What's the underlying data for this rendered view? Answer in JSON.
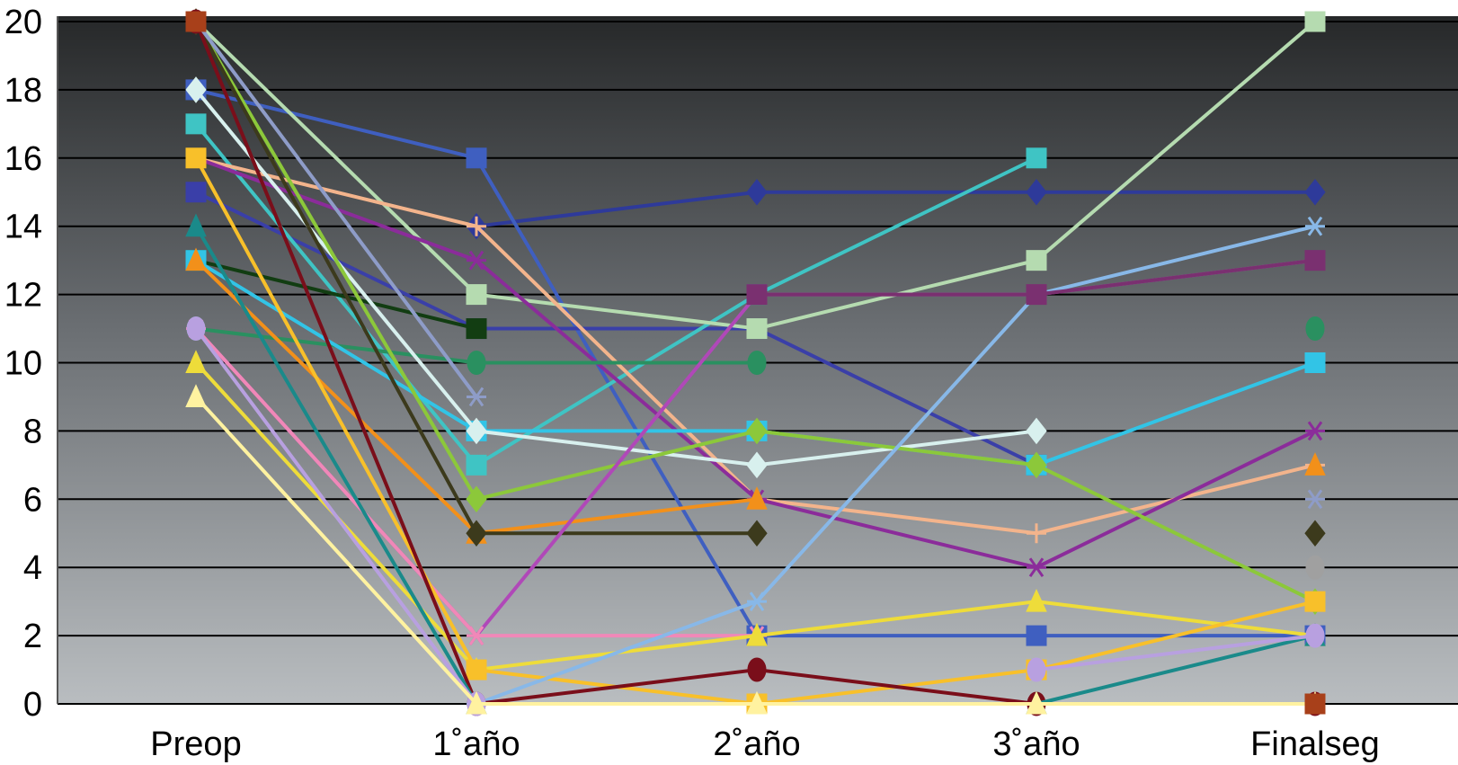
{
  "chart_data": {
    "type": "line",
    "title": "",
    "xlabel": "",
    "ylabel": "",
    "categories": [
      "Preop",
      "1˚año",
      "2˚año",
      "3˚año",
      "Finalseg"
    ],
    "y_ticks": [
      "0",
      "2",
      "4",
      "6",
      "8",
      "10",
      "12",
      "14",
      "16",
      "18",
      "20"
    ],
    "ylim": [
      0,
      20
    ],
    "grid": true,
    "legend": "none",
    "background": "dark-to-light vertical gradient",
    "series": [
      {
        "color": "#2e3a9a",
        "marker": "diamond",
        "values": [
          null,
          14,
          15,
          15,
          15
        ]
      },
      {
        "color": "#3f5fc0",
        "marker": "square",
        "values": [
          18,
          16,
          2,
          2,
          2
        ]
      },
      {
        "color": "#3a3fa8",
        "marker": "square",
        "values": [
          15,
          11,
          11,
          7,
          null
        ]
      },
      {
        "color": "#3fc4c4",
        "marker": "square",
        "values": [
          17,
          7,
          12,
          16,
          null
        ]
      },
      {
        "color": "#b5dbb0",
        "marker": "square",
        "values": [
          20,
          12,
          11,
          13,
          20
        ]
      },
      {
        "color": "#f3b48c",
        "marker": "plus",
        "values": [
          16,
          14,
          6,
          5,
          7
        ]
      },
      {
        "color": "#8b2c9a",
        "marker": "star",
        "values": [
          16,
          13,
          6,
          4,
          8
        ]
      },
      {
        "color": "#123d12",
        "marker": "square",
        "values": [
          13,
          11,
          null,
          null,
          null
        ]
      },
      {
        "color": "#2a9060",
        "marker": "circle",
        "values": [
          11,
          10,
          10,
          null,
          11
        ]
      },
      {
        "color": "#32c4e6",
        "marker": "square",
        "values": [
          13,
          8,
          8,
          7,
          10
        ]
      },
      {
        "color": "#d8f0ee",
        "marker": "diamond",
        "values": [
          18,
          8,
          7,
          8,
          null
        ]
      },
      {
        "color": "#f2901a",
        "marker": "triangle",
        "values": [
          13,
          5,
          6,
          null,
          7
        ]
      },
      {
        "color": "#8cc83a",
        "marker": "diamond",
        "values": [
          20,
          6,
          8,
          7,
          3
        ]
      },
      {
        "color": "#3c3a1c",
        "marker": "diamond",
        "values": [
          20,
          5,
          5,
          null,
          5
        ]
      },
      {
        "color": "#b048b8",
        "marker": "star",
        "values": [
          11,
          2,
          12,
          12,
          13
        ]
      },
      {
        "color": "#f088b8",
        "marker": "star",
        "values": [
          11,
          2,
          2,
          null,
          null
        ]
      },
      {
        "color": "#eedc3a",
        "marker": "triangle",
        "values": [
          10,
          1,
          2,
          3,
          2
        ]
      },
      {
        "color": "#f8c02a",
        "marker": "square",
        "values": [
          16,
          1,
          0,
          1,
          3
        ]
      },
      {
        "color": "#88b8e8",
        "marker": "star",
        "values": [
          null,
          0,
          3,
          12,
          14
        ]
      },
      {
        "color": "#7a0e1a",
        "marker": "circle",
        "values": [
          20,
          0,
          1,
          0,
          0
        ]
      },
      {
        "color": "#1a8a8a",
        "marker": "triangle",
        "values": [
          14,
          0,
          null,
          0,
          2
        ]
      },
      {
        "color": "#b8a0e0",
        "marker": "circle",
        "values": [
          11,
          0,
          null,
          1,
          2
        ]
      },
      {
        "color": "#fff2a0",
        "marker": "triangle",
        "values": [
          9,
          0,
          0,
          0,
          0
        ]
      },
      {
        "color": "#7a3070",
        "marker": "square",
        "values": [
          null,
          null,
          12,
          12,
          13
        ]
      },
      {
        "color": "#8e9cc8",
        "marker": "star",
        "values": [
          20,
          9,
          null,
          null,
          6
        ]
      },
      {
        "color": "#a0a0a0",
        "marker": "circle",
        "values": [
          null,
          null,
          null,
          null,
          4
        ]
      },
      {
        "color": "#a8401a",
        "marker": "square",
        "values": [
          20,
          null,
          null,
          null,
          0
        ]
      }
    ]
  }
}
